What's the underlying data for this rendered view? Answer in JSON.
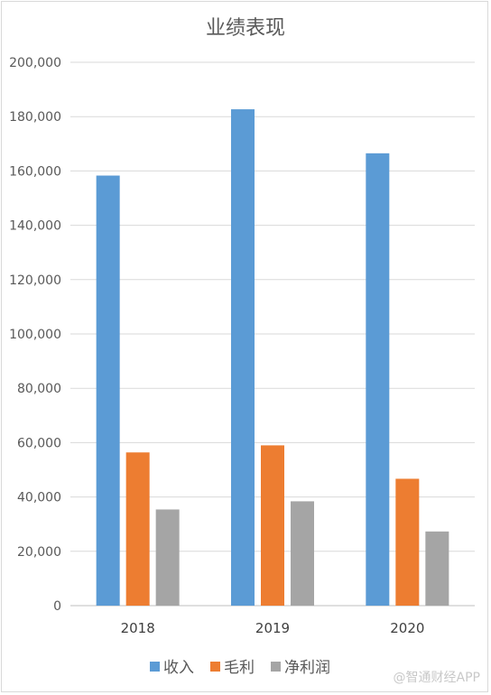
{
  "chart_data": {
    "type": "bar",
    "title": "业绩表现",
    "categories": [
      "2018",
      "2019",
      "2020"
    ],
    "series": [
      {
        "name": "收入",
        "color": "#5b9bd5",
        "values": [
          158300,
          182700,
          166500
        ]
      },
      {
        "name": "毛利",
        "color": "#ed7d31",
        "values": [
          56400,
          59000,
          46700
        ]
      },
      {
        "name": "净利润",
        "color": "#a5a5a5",
        "values": [
          35400,
          38400,
          27300
        ]
      }
    ],
    "ylim": [
      0,
      200000
    ],
    "yticks": [
      "0",
      "20,000",
      "40,000",
      "60,000",
      "80,000",
      "100,000",
      "120,000",
      "140,000",
      "160,000",
      "180,000",
      "200,000"
    ],
    "grid": true,
    "legend_position": "bottom"
  },
  "watermark": "@智通财经APP"
}
